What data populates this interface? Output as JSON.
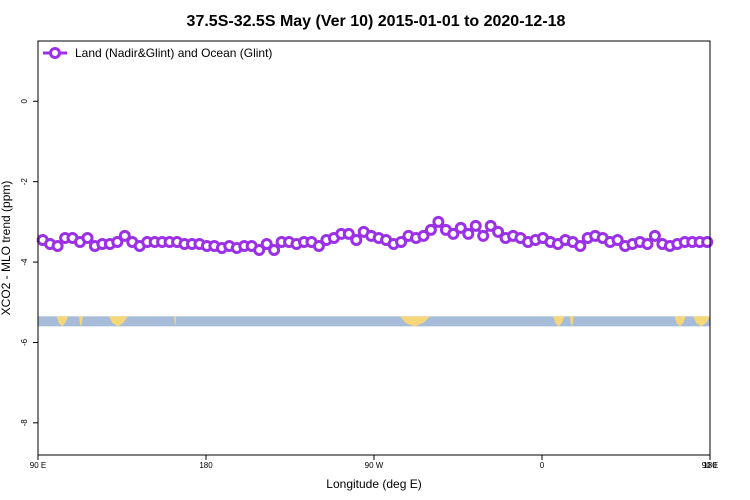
{
  "chart_data": {
    "type": "line",
    "title": "37.5S-32.5S May (Ver 10)   2015-01-01 to 2020-12-18",
    "xlabel": "Longitude (deg E)",
    "ylabel": "XCO2 - MLO trend (ppm)",
    "xlim": [
      90,
      450
    ],
    "ylim": [
      -8.8,
      1.5
    ],
    "x_ticks": [
      {
        "value": 90,
        "label": "90 E"
      },
      {
        "value": 180,
        "label": "180"
      },
      {
        "value": 270,
        "label": "90 W"
      },
      {
        "value": 360,
        "label": "0"
      },
      {
        "value": 450,
        "label": "90 E"
      }
    ],
    "extra_x_tick_label": "180",
    "y_ticks": [
      {
        "value": 0,
        "label": "0"
      },
      {
        "value": -2,
        "label": "-2"
      },
      {
        "value": -4,
        "label": "-4"
      },
      {
        "value": -6,
        "label": "-6"
      },
      {
        "value": -8,
        "label": "-8"
      }
    ],
    "legend": {
      "position": "top-left",
      "label": "Land (Nadir&Glint) and Ocean (Glint)"
    },
    "series": [
      {
        "name": "Land (Nadir&Glint) and Ocean (Glint)",
        "color": "#9b30e6",
        "x": [
          92.5,
          96.5,
          100.5,
          104.5,
          108.5,
          112.5,
          116.5,
          120.5,
          124.5,
          128.5,
          132.5,
          136.5,
          140.5,
          144.5,
          148.5,
          152.5,
          156.5,
          160.5,
          164.5,
          168.5,
          172.5,
          176.5,
          180.5,
          184.5,
          188.5,
          192.5,
          196.5,
          200.5,
          204.5,
          208.5,
          212.5,
          216.5,
          220.5,
          224.5,
          228.5,
          232.5,
          236.5,
          240.5,
          244.5,
          248.5,
          252.5,
          256.5,
          260.5,
          264.5,
          268.5,
          272.5,
          276.5,
          280.5,
          284.5,
          288.5,
          292.5,
          296.5,
          300.5,
          304.5,
          308.5,
          312.5,
          316.5,
          320.5,
          324.5,
          328.5,
          332.5,
          336.5,
          340.5,
          344.5,
          348.5,
          352.5,
          356.5,
          360.5,
          364.5,
          368.5,
          372.5,
          376.5,
          380.5,
          384.5,
          388.5,
          392.5,
          396.5,
          400.5,
          404.5,
          408.5,
          412.5,
          416.5,
          420.5,
          424.5,
          428.5,
          432.5,
          436.5,
          440.5,
          444.5,
          448.5
        ],
        "y": [
          -3.45,
          -3.55,
          -3.6,
          -3.4,
          -3.4,
          -3.5,
          -3.4,
          -3.6,
          -3.55,
          -3.55,
          -3.5,
          -3.35,
          -3.5,
          -3.6,
          -3.5,
          -3.5,
          -3.5,
          -3.5,
          -3.5,
          -3.55,
          -3.55,
          -3.55,
          -3.6,
          -3.6,
          -3.65,
          -3.6,
          -3.65,
          -3.6,
          -3.6,
          -3.7,
          -3.55,
          -3.7,
          -3.5,
          -3.5,
          -3.55,
          -3.5,
          -3.5,
          -3.6,
          -3.45,
          -3.4,
          -3.3,
          -3.3,
          -3.45,
          -3.25,
          -3.35,
          -3.4,
          -3.45,
          -3.55,
          -3.5,
          -3.35,
          -3.4,
          -3.35,
          -3.2,
          -3.0,
          -3.2,
          -3.3,
          -3.15,
          -3.3,
          -3.1,
          -3.35,
          -3.1,
          -3.25,
          -3.4,
          -3.35,
          -3.4,
          -3.5,
          -3.45,
          -3.4,
          -3.5,
          -3.55,
          -3.45,
          -3.5,
          -3.6,
          -3.4,
          -3.35,
          -3.4,
          -3.5,
          -3.45,
          -3.6,
          -3.55,
          -3.5,
          -3.55,
          -3.35,
          -3.55,
          -3.6,
          -3.55,
          -3.5,
          -3.5,
          -3.5,
          -3.5
        ]
      }
    ],
    "map_strip": {
      "y_top": -5.35,
      "y_bottom": -5.6,
      "ocean_color": "#a7bcd9",
      "land_color": "#f5d77a",
      "land_segments": [
        [
          100,
          106
        ],
        [
          112,
          114
        ],
        [
          128,
          138
        ],
        [
          163,
          164
        ],
        [
          284,
          300
        ],
        [
          366,
          372
        ],
        [
          375,
          377
        ],
        [
          431,
          437
        ],
        [
          441,
          451
        ]
      ]
    }
  }
}
